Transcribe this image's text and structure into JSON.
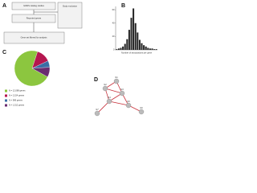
{
  "panels": {
    "a": "A",
    "b": "B",
    "c": "C",
    "d": "D"
  },
  "flowchart": {
    "nodes": [
      "GWAS catalog studies",
      "Study exclusion",
      "Reported genes",
      "Gene set filtered for analysis"
    ]
  },
  "histogram": {
    "type": "bar",
    "x_label": "Number of associations per gene",
    "values": [
      1,
      2,
      3,
      5,
      9,
      16,
      30,
      48,
      62,
      40,
      26,
      15,
      10,
      7,
      5,
      3,
      2,
      2,
      1,
      1
    ],
    "ylim": [
      0,
      65
    ],
    "yticks": [
      0,
      20,
      40,
      60
    ],
    "color": "#222222"
  },
  "pie": {
    "type": "pie",
    "values": [
      72,
      13,
      6,
      9
    ],
    "colors": [
      "#8cc63f",
      "#b5164f",
      "#3a6ea5",
      "#6a2c70"
    ],
    "labels": [
      "N = 12,088 genes",
      "N = 2,154 genes",
      "N = 986 genes",
      "N = 1,512 genes"
    ]
  },
  "network": {
    "nodes": [
      "G1",
      "G2",
      "G3",
      "G4",
      "G5",
      "G6",
      "G7"
    ]
  }
}
